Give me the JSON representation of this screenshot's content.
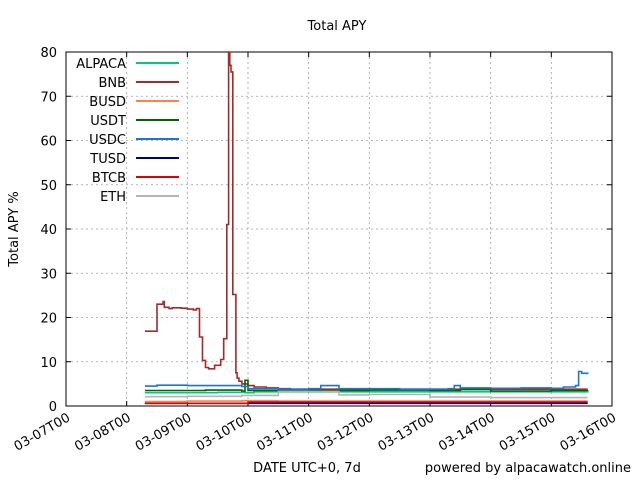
{
  "chart_data": {
    "type": "line",
    "title": "Total APY",
    "xlabel": "DATE UTC+0, 7d",
    "ylabel": "Total APY %",
    "footer": "powered by alpacawatch.online",
    "x_ticks": [
      "03-07T00",
      "03-08T00",
      "03-09T00",
      "03-10T00",
      "03-11T00",
      "03-12T00",
      "03-13T00",
      "03-14T00",
      "03-15T00",
      "03-16T00"
    ],
    "x_range_days": [
      0,
      9
    ],
    "ylim": [
      0,
      80
    ],
    "y_ticks": [
      0,
      10,
      20,
      30,
      40,
      50,
      60,
      70,
      80
    ],
    "grid": true,
    "legend_position": "top-left",
    "series": [
      {
        "name": "ALPACA",
        "color": "#00c880",
        "x": [
          1.3,
          2.5,
          2.95,
          3.1,
          8.6
        ],
        "y": [
          3.0,
          3.1,
          3.0,
          3.2,
          3.3
        ]
      },
      {
        "name": "BNB",
        "color": "#a52a2a",
        "x": [
          1.3,
          1.49,
          1.5,
          1.6,
          1.62,
          1.7,
          1.75,
          1.9,
          2.0,
          2.1,
          2.15,
          2.2,
          2.25,
          2.3,
          2.35,
          2.45,
          2.55,
          2.6,
          2.65,
          2.68,
          2.7,
          2.72,
          2.75,
          2.8,
          2.82,
          2.85,
          2.9,
          3.0,
          3.1,
          3.3,
          3.5,
          3.7,
          8.6
        ],
        "y": [
          16.9,
          16.9,
          23.0,
          23.6,
          22.3,
          22.0,
          22.2,
          22.1,
          21.9,
          21.7,
          22.0,
          15.6,
          10.3,
          8.7,
          8.4,
          9.2,
          10.5,
          15.2,
          41.0,
          80.0,
          77.0,
          75.5,
          25.2,
          7.5,
          6.3,
          5.6,
          5.0,
          4.6,
          4.3,
          4.1,
          3.9,
          3.8,
          3.8
        ]
      },
      {
        "name": "BUSD",
        "color": "#ff7f50",
        "x": [
          1.3,
          2.0,
          2.9,
          3.5,
          8.6
        ],
        "y": [
          1.0,
          1.1,
          1.2,
          1.1,
          1.1
        ]
      },
      {
        "name": "USDT",
        "color": "#006400",
        "x": [
          1.3,
          2.3,
          2.9,
          2.95,
          3.0,
          3.5,
          4.0,
          5.0,
          6.0,
          6.5,
          7.0,
          8.0,
          8.6
        ],
        "y": [
          3.5,
          3.6,
          3.4,
          5.8,
          3.5,
          3.6,
          3.5,
          3.6,
          3.5,
          3.7,
          3.4,
          3.5,
          3.6
        ]
      },
      {
        "name": "USDC",
        "color": "#1e73d2",
        "x": [
          1.3,
          1.5,
          2.0,
          2.5,
          2.9,
          3.0,
          3.5,
          4.0,
          4.2,
          4.4,
          4.5,
          5.0,
          5.5,
          6.0,
          6.3,
          6.4,
          6.5,
          7.0,
          7.5,
          8.0,
          8.2,
          8.4,
          8.45,
          8.5,
          8.6
        ],
        "y": [
          4.5,
          4.7,
          4.6,
          4.6,
          4.4,
          3.9,
          3.8,
          3.9,
          4.6,
          4.6,
          3.9,
          3.9,
          3.8,
          3.8,
          3.9,
          4.6,
          4.1,
          4.0,
          4.1,
          4.0,
          4.3,
          4.6,
          7.8,
          7.4,
          7.2
        ]
      },
      {
        "name": "TUSD",
        "color": "#000080",
        "x": [
          1.3,
          8.6
        ],
        "y": [
          0.6,
          0.6
        ]
      },
      {
        "name": "BTCB",
        "color": "#e00000",
        "x": [
          1.3,
          3.0,
          8.6
        ],
        "y": [
          0.6,
          0.9,
          0.9
        ]
      },
      {
        "name": "ETH",
        "color": "#b4b4b4",
        "x": [
          1.3,
          2.0,
          2.9,
          3.5,
          4.5,
          5.0,
          6.0,
          7.0,
          8.6
        ],
        "y": [
          2.1,
          2.2,
          2.4,
          3.3,
          2.5,
          2.6,
          2.0,
          1.9,
          1.9
        ]
      }
    ]
  }
}
